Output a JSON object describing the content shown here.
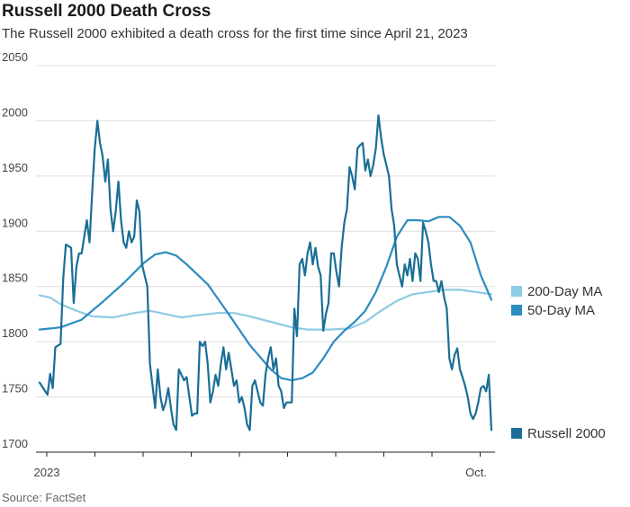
{
  "title": "Russell 2000 Death Cross",
  "subtitle": "The Russell 2000 exhibited a death cross for the first time since April 21, 2023",
  "source": "Source: FactSet",
  "chart_data": {
    "type": "line",
    "title": "Russell 2000 Death Cross",
    "xlabel": "",
    "ylabel": "",
    "ylim": [
      1700,
      2050
    ],
    "y_ticks": [
      1700,
      1750,
      1800,
      1850,
      1900,
      1950,
      2000,
      2050
    ],
    "x_tick_labels": [
      "2023",
      "Oct."
    ],
    "x_tick_count": 10,
    "grid": true,
    "legend": "right",
    "series": [
      {
        "name": "Russell 2000",
        "color": "#1a6e95",
        "points": [
          [
            0,
            1763
          ],
          [
            3,
            1752
          ],
          [
            4,
            1771
          ],
          [
            5,
            1758
          ],
          [
            6,
            1795
          ],
          [
            8,
            1798
          ],
          [
            9,
            1858
          ],
          [
            10,
            1888
          ],
          [
            12,
            1885
          ],
          [
            13,
            1835
          ],
          [
            14,
            1868
          ],
          [
            15,
            1880
          ],
          [
            16,
            1880
          ],
          [
            17,
            1895
          ],
          [
            18,
            1910
          ],
          [
            19,
            1890
          ],
          [
            20,
            1935
          ],
          [
            21,
            1975
          ],
          [
            22,
            2000
          ],
          [
            23,
            1980
          ],
          [
            24,
            1968
          ],
          [
            25,
            1945
          ],
          [
            26,
            1965
          ],
          [
            27,
            1920
          ],
          [
            28,
            1900
          ],
          [
            29,
            1918
          ],
          [
            30,
            1945
          ],
          [
            31,
            1910
          ],
          [
            32,
            1890
          ],
          [
            33,
            1885
          ],
          [
            34,
            1900
          ],
          [
            35,
            1890
          ],
          [
            36,
            1895
          ],
          [
            37,
            1928
          ],
          [
            38,
            1918
          ],
          [
            39,
            1870
          ],
          [
            40,
            1860
          ],
          [
            41,
            1850
          ],
          [
            42,
            1780
          ],
          [
            43,
            1760
          ],
          [
            44,
            1740
          ],
          [
            45,
            1775
          ],
          [
            46,
            1750
          ],
          [
            47,
            1738
          ],
          [
            48,
            1745
          ],
          [
            49,
            1758
          ],
          [
            50,
            1740
          ],
          [
            51,
            1725
          ],
          [
            52,
            1720
          ],
          [
            53,
            1775
          ],
          [
            54,
            1770
          ],
          [
            55,
            1765
          ],
          [
            56,
            1768
          ],
          [
            57,
            1750
          ],
          [
            58,
            1733
          ],
          [
            59,
            1735
          ],
          [
            60,
            1735
          ],
          [
            61,
            1800
          ],
          [
            62,
            1796
          ],
          [
            63,
            1800
          ],
          [
            64,
            1780
          ],
          [
            65,
            1745
          ],
          [
            66,
            1755
          ],
          [
            67,
            1770
          ],
          [
            68,
            1760
          ],
          [
            69,
            1780
          ],
          [
            70,
            1795
          ],
          [
            71,
            1775
          ],
          [
            72,
            1790
          ],
          [
            73,
            1775
          ],
          [
            74,
            1760
          ],
          [
            75,
            1765
          ],
          [
            76,
            1745
          ],
          [
            77,
            1750
          ],
          [
            78,
            1740
          ],
          [
            79,
            1725
          ],
          [
            80,
            1720
          ],
          [
            81,
            1760
          ],
          [
            82,
            1765
          ],
          [
            83,
            1755
          ],
          [
            84,
            1745
          ],
          [
            85,
            1742
          ],
          [
            86,
            1770
          ],
          [
            87,
            1785
          ],
          [
            88,
            1795
          ],
          [
            89,
            1775
          ],
          [
            90,
            1785
          ],
          [
            91,
            1760
          ],
          [
            92,
            1755
          ],
          [
            93,
            1740
          ],
          [
            94,
            1745
          ],
          [
            95,
            1745
          ],
          [
            96,
            1745
          ],
          [
            97,
            1830
          ],
          [
            98,
            1805
          ],
          [
            99,
            1870
          ],
          [
            100,
            1875
          ],
          [
            101,
            1860
          ],
          [
            102,
            1880
          ],
          [
            103,
            1890
          ],
          [
            104,
            1870
          ],
          [
            105,
            1885
          ],
          [
            106,
            1868
          ],
          [
            107,
            1860
          ],
          [
            108,
            1810
          ],
          [
            109,
            1825
          ],
          [
            110,
            1835
          ],
          [
            111,
            1880
          ],
          [
            112,
            1880
          ],
          [
            113,
            1863
          ],
          [
            114,
            1850
          ],
          [
            115,
            1885
          ],
          [
            116,
            1908
          ],
          [
            117,
            1920
          ],
          [
            118,
            1958
          ],
          [
            119,
            1950
          ],
          [
            120,
            1938
          ],
          [
            121,
            1975
          ],
          [
            122,
            1978
          ],
          [
            123,
            1980
          ],
          [
            124,
            1955
          ],
          [
            125,
            1965
          ],
          [
            126,
            1950
          ],
          [
            127,
            1960
          ],
          [
            128,
            1975
          ],
          [
            129,
            2005
          ],
          [
            130,
            1985
          ],
          [
            131,
            1970
          ],
          [
            132,
            1960
          ],
          [
            133,
            1950
          ],
          [
            134,
            1920
          ],
          [
            135,
            1905
          ],
          [
            136,
            1870
          ],
          [
            137,
            1860
          ],
          [
            138,
            1850
          ],
          [
            139,
            1870
          ],
          [
            140,
            1860
          ],
          [
            141,
            1875
          ],
          [
            142,
            1855
          ],
          [
            143,
            1880
          ],
          [
            144,
            1875
          ],
          [
            145,
            1855
          ],
          [
            146,
            1908
          ],
          [
            147,
            1900
          ],
          [
            148,
            1890
          ],
          [
            149,
            1870
          ],
          [
            150,
            1855
          ],
          [
            151,
            1855
          ],
          [
            152,
            1845
          ],
          [
            153,
            1855
          ],
          [
            154,
            1840
          ],
          [
            155,
            1830
          ],
          [
            156,
            1785
          ],
          [
            157,
            1775
          ],
          [
            158,
            1788
          ],
          [
            159,
            1794
          ],
          [
            160,
            1775
          ],
          [
            161,
            1768
          ],
          [
            162,
            1760
          ],
          [
            163,
            1750
          ],
          [
            164,
            1735
          ],
          [
            165,
            1730
          ],
          [
            166,
            1735
          ],
          [
            167,
            1745
          ],
          [
            168,
            1758
          ],
          [
            169,
            1760
          ],
          [
            170,
            1755
          ],
          [
            171,
            1770
          ],
          [
            172,
            1720
          ]
        ]
      },
      {
        "name": "50-Day MA",
        "color": "#2b8cbe",
        "points": [
          [
            0,
            1811
          ],
          [
            8,
            1813
          ],
          [
            16,
            1820
          ],
          [
            24,
            1836
          ],
          [
            32,
            1853
          ],
          [
            40,
            1872
          ],
          [
            44,
            1879
          ],
          [
            48,
            1881
          ],
          [
            52,
            1878
          ],
          [
            56,
            1870
          ],
          [
            64,
            1852
          ],
          [
            72,
            1825
          ],
          [
            80,
            1797
          ],
          [
            88,
            1775
          ],
          [
            92,
            1767
          ],
          [
            96,
            1765
          ],
          [
            100,
            1767
          ],
          [
            104,
            1772
          ],
          [
            108,
            1785
          ],
          [
            112,
            1800
          ],
          [
            116,
            1810
          ],
          [
            120,
            1818
          ],
          [
            124,
            1828
          ],
          [
            128,
            1845
          ],
          [
            132,
            1868
          ],
          [
            136,
            1895
          ],
          [
            140,
            1910
          ],
          [
            144,
            1910
          ],
          [
            148,
            1909
          ],
          [
            152,
            1913
          ],
          [
            156,
            1913
          ],
          [
            160,
            1905
          ],
          [
            164,
            1890
          ],
          [
            168,
            1860
          ],
          [
            172,
            1838
          ]
        ]
      },
      {
        "name": "200-Day MA",
        "color": "#8ecbe4",
        "points": [
          [
            0,
            1842
          ],
          [
            4,
            1840
          ],
          [
            8,
            1834
          ],
          [
            14,
            1828
          ],
          [
            20,
            1823
          ],
          [
            28,
            1822
          ],
          [
            36,
            1826
          ],
          [
            42,
            1828
          ],
          [
            48,
            1825
          ],
          [
            54,
            1822
          ],
          [
            60,
            1824
          ],
          [
            68,
            1826
          ],
          [
            74,
            1826
          ],
          [
            80,
            1823
          ],
          [
            88,
            1818
          ],
          [
            96,
            1813
          ],
          [
            102,
            1811
          ],
          [
            110,
            1811
          ],
          [
            118,
            1812
          ],
          [
            124,
            1818
          ],
          [
            130,
            1828
          ],
          [
            136,
            1837
          ],
          [
            142,
            1843
          ],
          [
            148,
            1845
          ],
          [
            154,
            1847
          ],
          [
            160,
            1847
          ],
          [
            166,
            1845
          ],
          [
            172,
            1843
          ]
        ]
      }
    ]
  }
}
